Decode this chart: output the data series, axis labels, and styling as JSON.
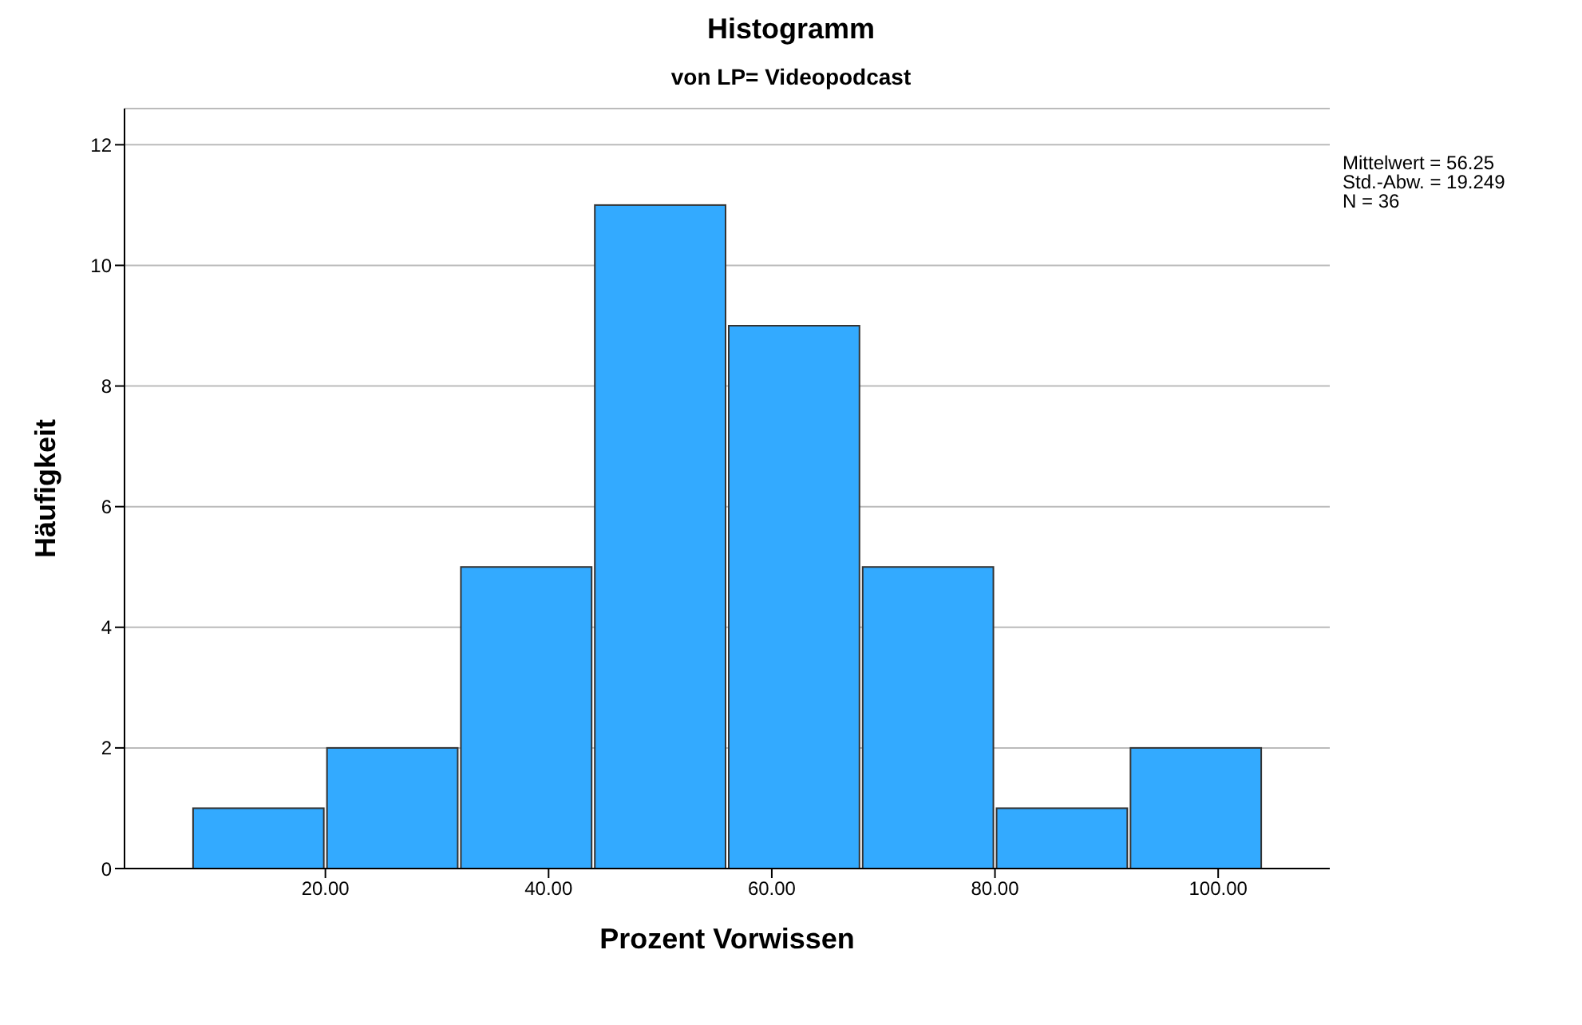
{
  "chart_data": {
    "type": "histogram",
    "title": "Histogramm",
    "subtitle": "von LP= Videopodcast",
    "xlabel": "Prozent Vorwissen",
    "ylabel": "Häufigkeit",
    "bins": [
      8,
      20,
      32,
      44,
      56,
      68,
      80,
      92,
      104
    ],
    "values": [
      1,
      2,
      5,
      11,
      9,
      5,
      1,
      2
    ],
    "color": "#33aaff",
    "xlim": [
      2,
      110
    ],
    "xticks": [
      {
        "value": 20,
        "label": "20.00"
      },
      {
        "value": 40,
        "label": "40.00"
      },
      {
        "value": 60,
        "label": "60.00"
      },
      {
        "value": 80,
        "label": "80.00"
      },
      {
        "value": 100,
        "label": "100.00"
      }
    ],
    "ylim": [
      0,
      12.6
    ],
    "yticks": [
      0,
      2,
      4,
      6,
      8,
      10,
      12
    ],
    "grid": "y",
    "annotations": [
      "Mittelwert = 56.25\nStd.-Abw. = 19.249\nN = 36"
    ]
  }
}
